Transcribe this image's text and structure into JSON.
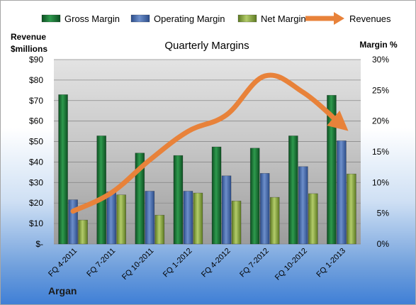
{
  "company": "Argan",
  "chart_data": {
    "type": "bar",
    "title": "Quarterly Margins",
    "ylabel_left": "Revenue $millions",
    "ylabel_left_lines": [
      "Revenue",
      "$millions"
    ],
    "ylabel_right": "Margin %",
    "categories": [
      "FQ 4-2011",
      "FQ 7-2011",
      "FQ 10-2011",
      "FQ 1-2012",
      "FQ 4-2012",
      "FQ 7-2012",
      "FQ 10-2012",
      "FQ 1-2013"
    ],
    "left_axis": {
      "min": 0,
      "max": 90,
      "step": 10,
      "tick_labels": [
        "$-",
        "$10",
        "$20",
        "$30",
        "$40",
        "$50",
        "$60",
        "$70",
        "$80",
        "$90"
      ]
    },
    "right_axis": {
      "min": 0,
      "max": 30,
      "step": 5,
      "tick_labels": [
        "0%",
        "5%",
        "10%",
        "15%",
        "20%",
        "25%",
        "30%"
      ]
    },
    "series": [
      {
        "name": "Gross Margin",
        "axis": "right",
        "type": "bar",
        "color": "#1f7a3a",
        "values": [
          24.3,
          17.6,
          14.8,
          14.4,
          15.8,
          15.6,
          17.6,
          24.2
        ]
      },
      {
        "name": "Operating Margin",
        "axis": "right",
        "type": "bar",
        "color": "#4a6fb0",
        "values": [
          7.2,
          8.5,
          8.6,
          8.6,
          11.1,
          11.5,
          12.6,
          16.8
        ]
      },
      {
        "name": "Net Margin",
        "axis": "right",
        "type": "bar",
        "color": "#8fb04a",
        "values": [
          3.9,
          8.0,
          4.7,
          8.3,
          7.0,
          7.6,
          8.2,
          11.4
        ]
      },
      {
        "name": "Revenues",
        "axis": "left",
        "type": "line",
        "color": "#e8823a",
        "values": [
          16,
          25,
          41,
          55,
          63,
          82,
          74,
          58
        ]
      }
    ],
    "legend": {
      "placement": "top",
      "items": [
        "Gross Margin",
        "Operating Margin",
        "Net Margin",
        "Revenues"
      ]
    },
    "grid": true
  }
}
